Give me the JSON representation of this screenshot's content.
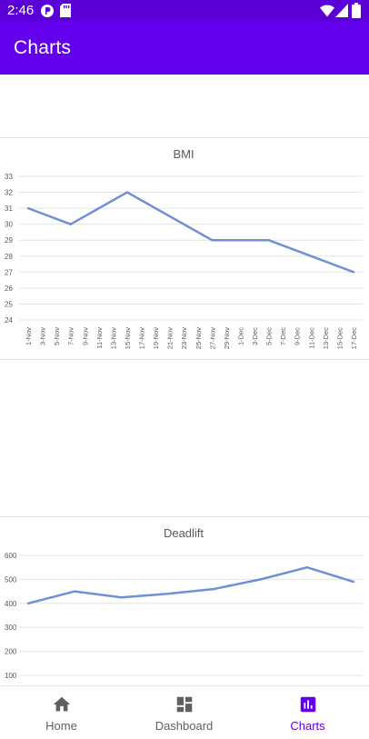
{
  "status_bar": {
    "time": "2:46"
  },
  "app_bar": {
    "title": "Charts"
  },
  "charts": [
    {
      "title": "BMI",
      "chart_data": {
        "type": "line",
        "title": "BMI",
        "categories": [
          "1-Nov",
          "3-Nov",
          "5-Nov",
          "7-Nov",
          "9-Nov",
          "11-Nov",
          "13-Nov",
          "15-Nov",
          "17-Nov",
          "19-Nov",
          "21-Nov",
          "23-Nov",
          "25-Nov",
          "27-Nov",
          "29-Nov",
          "1-Dec",
          "3-Dec",
          "5-Dec",
          "7-Dec",
          "9-Dec",
          "11-Dec",
          "13-Dec",
          "15-Dec",
          "17-Dec"
        ],
        "series": [
          {
            "x": [
              "1-Nov",
              "7-Nov",
              "15-Nov",
              "27-Nov",
              "5-Dec",
              "17-Dec"
            ],
            "values": [
              31,
              30,
              32,
              29,
              29,
              27
            ]
          }
        ],
        "yticks": [
          24,
          25,
          26,
          27,
          28,
          29,
          30,
          31,
          32,
          33
        ],
        "ylim": [
          24,
          33
        ],
        "grid": true,
        "color": "#6f8fd6"
      }
    },
    {
      "title": "Deadlift",
      "chart_data": {
        "type": "line",
        "title": "Deadlift",
        "series": [
          {
            "values": [
              400,
              450,
              425,
              440,
              460,
              500,
              550,
              490
            ]
          }
        ],
        "yticks": [
          100,
          200,
          300,
          400,
          500,
          600
        ],
        "ylim": [
          100,
          600
        ],
        "grid": true,
        "color": "#6f8fd6"
      }
    }
  ],
  "bottom_nav": {
    "items": [
      {
        "label": "Home",
        "icon": "home-icon",
        "active": false
      },
      {
        "label": "Dashboard",
        "icon": "dashboard-icon",
        "active": false
      },
      {
        "label": "Charts",
        "icon": "bar-chart-icon",
        "active": true
      }
    ],
    "active_color": "#6200ee",
    "inactive_color": "#5f5f5f"
  }
}
